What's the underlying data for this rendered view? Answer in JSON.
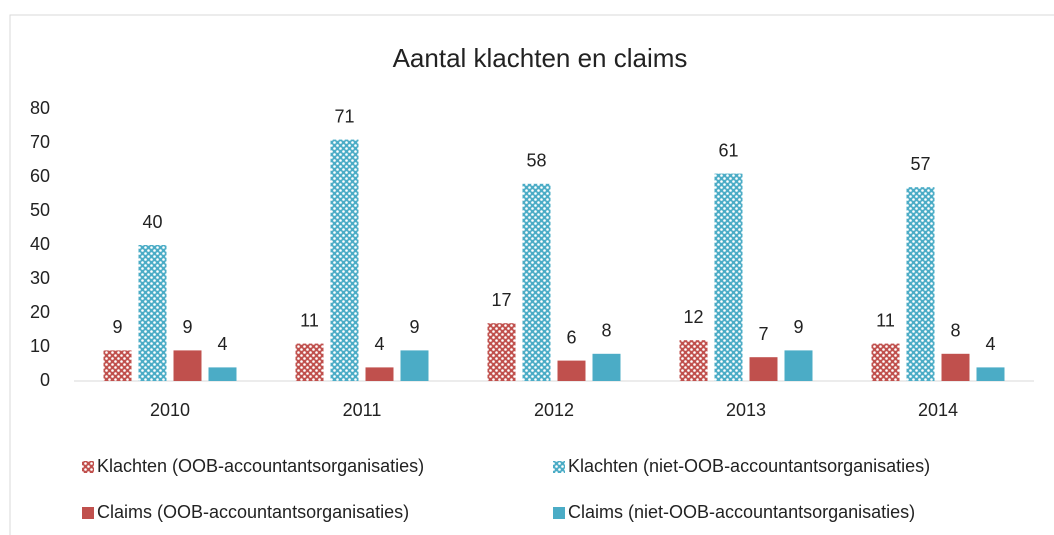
{
  "chart_data": {
    "type": "bar",
    "title": "Aantal klachten en claims",
    "categories": [
      "2010",
      "2011",
      "2012",
      "2013",
      "2014"
    ],
    "series": [
      {
        "name": "Klachten (OOB-accountantsorganisaties)",
        "color": "#c0504d",
        "pattern": "dots",
        "values": [
          9,
          11,
          17,
          12,
          11
        ]
      },
      {
        "name": "Klachten (niet-OOB-accountantsorganisaties)",
        "color": "#4bacc6",
        "pattern": "dots",
        "values": [
          40,
          71,
          58,
          61,
          57
        ]
      },
      {
        "name": "Claims (OOB-accountantsorganisaties)",
        "color": "#c0504d",
        "values": [
          9,
          4,
          6,
          7,
          8
        ]
      },
      {
        "name": "Claims (niet-OOB-accountantsorganisaties)",
        "color": "#4bacc6",
        "values": [
          4,
          9,
          8,
          9,
          4
        ]
      }
    ],
    "ylim": [
      0,
      80
    ],
    "yticks": [
      0,
      10,
      20,
      30,
      40,
      50,
      60,
      70,
      80
    ],
    "grid": false,
    "legend": "bottom"
  }
}
